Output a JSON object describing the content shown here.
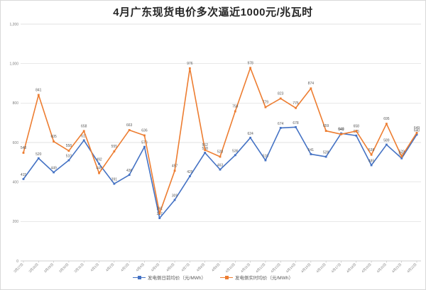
{
  "title": "4月广东现货电价多次逼近1000元/兆瓦时",
  "colors": {
    "series_blue": "#4472C4",
    "series_orange": "#ED7D31",
    "gridline": "#D9D9D9",
    "axis_line": "#BFBFBF",
    "axis_text": "#808080",
    "data_label": "#595959",
    "title_text": "#262626"
  },
  "chart_data": {
    "type": "line",
    "title": "4月广东现货电价多次逼近1000元/兆瓦时",
    "xlabel": "",
    "ylabel": "",
    "ylim": [
      0,
      1200
    ],
    "ytick_step": 200,
    "grid": "horizontal",
    "legend_position": "bottom",
    "categories": [
      "3月27日",
      "3月28日",
      "3月29日",
      "3月30日",
      "3月31日",
      "4月1日",
      "4月2日",
      "4月3日",
      "4月4日",
      "4月5日",
      "4月6日",
      "4月7日",
      "4月8日",
      "4月9日",
      "4月10日",
      "4月11日",
      "4月12日",
      "4月13日",
      "4月14日",
      "4月15日",
      "4月16日",
      "4月17日",
      "4月18日",
      "4月19日",
      "4月20日",
      "4月21日",
      "4月22日"
    ],
    "series": [
      {
        "name": "发电侧日前均价（元/MWh）",
        "color": "#4472C4",
        "values": [
          415,
          520,
          449,
          510,
          611,
          492,
          391,
          436,
          578,
          217,
          309,
          429,
          548,
          463,
          536,
          624,
          510,
          674,
          678,
          541,
          528,
          646,
          635,
          485,
          589,
          520,
          640
        ]
      },
      {
        "name": "发电侧实时均价（元/MWh）",
        "color": "#ED7D31",
        "values": [
          548,
          841,
          605,
          558,
          658,
          445,
          555,
          663,
          636,
          241,
          457,
          976,
          562,
          528,
          758,
          978,
          779,
          823,
          775,
          874,
          659,
          642,
          658,
          538,
          695,
          529,
          649
        ]
      }
    ]
  }
}
